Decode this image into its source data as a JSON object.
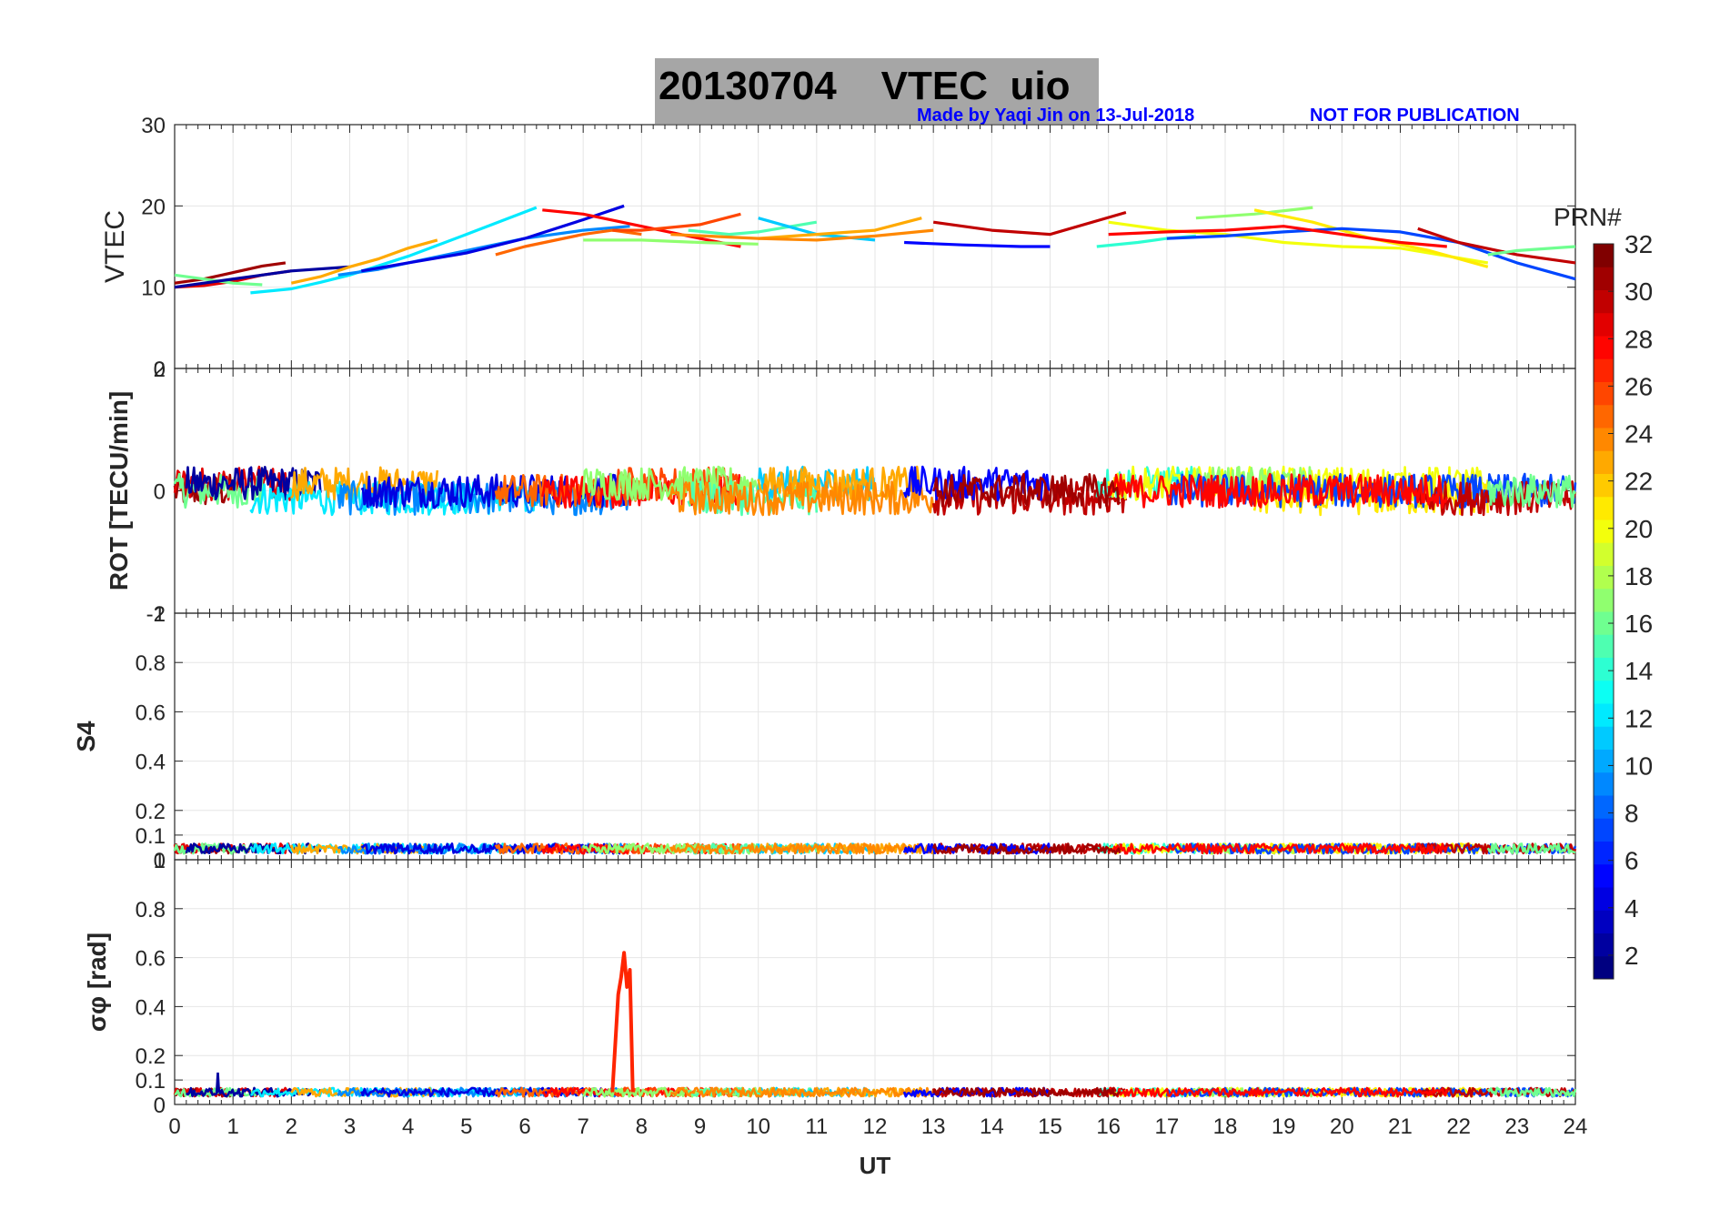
{
  "figure": {
    "title": "20130704    VTEC  uio",
    "credit": "Made by Yaqi Jin on 13-Jul-2018",
    "notice": "NOT FOR PUBLICATION"
  },
  "colorbar": {
    "label": "PRN#",
    "ticks": [
      "2",
      "4",
      "6",
      "8",
      "10",
      "12",
      "14",
      "16",
      "18",
      "20",
      "22",
      "24",
      "26",
      "28",
      "30",
      "32"
    ],
    "range": [
      1,
      32
    ]
  },
  "chart_data": [
    {
      "type": "line",
      "panel": "vtec",
      "ylabel": "VTEC",
      "xlim": [
        0,
        24
      ],
      "ylim": [
        0,
        30
      ],
      "yticks": [
        "0",
        "10",
        "20",
        "30"
      ],
      "series": [
        {
          "prn": 31,
          "x": [
            0.0,
            0.5,
            1.0,
            1.5,
            1.9
          ],
          "y": [
            10.5,
            11.0,
            11.8,
            12.6,
            13.0
          ]
        },
        {
          "prn": 29,
          "x": [
            0.0,
            0.5,
            1.0,
            1.5,
            2.0
          ],
          "y": [
            10.0,
            10.2,
            10.7,
            11.5,
            12.0
          ]
        },
        {
          "prn": 16,
          "x": [
            0.0,
            0.5,
            1.0,
            1.5
          ],
          "y": [
            11.5,
            11.0,
            10.5,
            10.3
          ]
        },
        {
          "prn": 2,
          "x": [
            0.0,
            0.5,
            1.0,
            1.5,
            2.0,
            3.0
          ],
          "y": [
            10.0,
            10.5,
            11.0,
            11.5,
            12.0,
            12.5
          ]
        },
        {
          "prn": 12,
          "x": [
            1.3,
            2.0,
            2.5,
            3.0,
            4.0,
            5.0,
            6.2
          ],
          "y": [
            9.3,
            9.8,
            10.6,
            11.5,
            13.8,
            16.5,
            19.8
          ]
        },
        {
          "prn": 23,
          "x": [
            2.0,
            2.5,
            3.0,
            3.5,
            4.0,
            4.5
          ],
          "y": [
            10.5,
            11.3,
            12.5,
            13.5,
            14.8,
            15.8
          ]
        },
        {
          "prn": 9,
          "x": [
            2.8,
            3.5,
            4.0,
            5.0,
            6.0,
            7.0,
            7.8
          ],
          "y": [
            11.5,
            12.2,
            13.0,
            14.5,
            16.0,
            17.0,
            17.5
          ]
        },
        {
          "prn": 4,
          "x": [
            3.2,
            4.0,
            5.0,
            6.0,
            7.0,
            7.7
          ],
          "y": [
            12.0,
            13.0,
            14.2,
            16.0,
            18.3,
            20.0
          ]
        },
        {
          "prn": 25,
          "x": [
            5.5,
            6.0,
            7.0,
            7.5,
            8.0
          ],
          "y": [
            14.0,
            15.0,
            16.5,
            17.0,
            16.5
          ]
        },
        {
          "prn": 28,
          "x": [
            6.3,
            7.0,
            8.0,
            9.0,
            9.7
          ],
          "y": [
            19.5,
            19.0,
            17.5,
            16.0,
            15.0
          ]
        },
        {
          "prn": 26,
          "x": [
            7.5,
            8.0,
            9.0,
            9.7
          ],
          "y": [
            17.0,
            17.0,
            17.7,
            19.0
          ]
        },
        {
          "prn": 17,
          "x": [
            7.0,
            8.0,
            9.0,
            10.0
          ],
          "y": [
            15.8,
            15.8,
            15.5,
            15.3
          ]
        },
        {
          "prn": 15,
          "x": [
            8.8,
            9.5,
            10.0,
            11.0
          ],
          "y": [
            17.0,
            16.5,
            16.8,
            18.0
          ]
        },
        {
          "prn": 11,
          "x": [
            10.0,
            10.5,
            11.0,
            12.0
          ],
          "y": [
            18.5,
            17.5,
            16.5,
            15.8
          ]
        },
        {
          "prn": 23,
          "x": [
            10.0,
            11.0,
            12.0,
            12.8
          ],
          "y": [
            16.0,
            16.5,
            17.0,
            18.5
          ]
        },
        {
          "prn": 24,
          "x": [
            8.5,
            10.0,
            11.0,
            12.0,
            13.0
          ],
          "y": [
            16.5,
            16.0,
            15.8,
            16.3,
            17.0
          ]
        },
        {
          "prn": 30,
          "x": [
            13.0,
            14.0,
            15.0,
            16.3
          ],
          "y": [
            18.0,
            17.0,
            16.5,
            19.2
          ]
        },
        {
          "prn": 5,
          "x": [
            12.5,
            13.5,
            14.5,
            15.0
          ],
          "y": [
            15.5,
            15.2,
            15.0,
            15.0
          ]
        },
        {
          "prn": 14,
          "x": [
            15.8,
            16.5,
            17.0,
            17.5
          ],
          "y": [
            15.0,
            15.5,
            16.0,
            16.3
          ]
        },
        {
          "prn": 20,
          "x": [
            16.0,
            17.0,
            18.0,
            19.0,
            20.0,
            21.0,
            22.5
          ],
          "y": [
            18.0,
            17.0,
            16.5,
            15.5,
            15.0,
            14.8,
            13.0
          ]
        },
        {
          "prn": 17,
          "x": [
            17.5,
            18.5,
            19.5
          ],
          "y": [
            18.5,
            19.0,
            19.8
          ]
        },
        {
          "prn": 21,
          "x": [
            18.5,
            19.5,
            20.5,
            21.5,
            22.5
          ],
          "y": [
            19.5,
            18.0,
            16.0,
            14.5,
            12.5
          ]
        },
        {
          "prn": 7,
          "x": [
            17.0,
            18.0,
            19.0,
            20.0,
            21.0,
            22.0,
            23.0,
            24.0
          ],
          "y": [
            16.0,
            16.3,
            16.8,
            17.2,
            16.8,
            15.5,
            13.0,
            11.0
          ]
        },
        {
          "prn": 30,
          "x": [
            21.3,
            22.0,
            23.0,
            24.0
          ],
          "y": [
            17.2,
            15.5,
            14.0,
            13.0
          ]
        },
        {
          "prn": 16,
          "x": [
            22.5,
            23.0,
            24.0
          ],
          "y": [
            14.0,
            14.5,
            15.0
          ]
        },
        {
          "prn": 28,
          "x": [
            16.0,
            17.0,
            18.0,
            19.0,
            20.0,
            21.0,
            21.8
          ],
          "y": [
            16.5,
            16.8,
            17.0,
            17.5,
            16.5,
            15.5,
            15.0
          ]
        }
      ]
    },
    {
      "type": "line",
      "panel": "rot",
      "ylabel": "ROT [TECU/min]",
      "xlim": [
        0,
        24
      ],
      "ylim": [
        -2,
        2
      ],
      "yticks": [
        "-2",
        "0",
        "2"
      ],
      "note": "Dense noisy ROT traces for all PRNs fluctuating within roughly -0.5 to +0.4 TECU/min around zero across 0-24 UT"
    },
    {
      "type": "line",
      "panel": "s4",
      "ylabel": "S4",
      "xlim": [
        0,
        24
      ],
      "ylim": [
        0,
        1
      ],
      "yticks": [
        "0",
        "0.1",
        "0.2",
        "0.4",
        "0.6",
        "0.8",
        "1"
      ],
      "note": "S4 stays low (about 0.03-0.08) for all PRNs across 0-24 UT"
    },
    {
      "type": "line",
      "panel": "sigma-phi",
      "ylabel": "σφ [rad]",
      "xlim": [
        0,
        24
      ],
      "ylim": [
        0,
        1
      ],
      "yticks": [
        "0",
        "0.1",
        "0.2",
        "0.4",
        "0.6",
        "0.8",
        "1"
      ],
      "xlabel": "UT",
      "xticks": [
        "0",
        "1",
        "2",
        "3",
        "4",
        "5",
        "6",
        "7",
        "8",
        "9",
        "10",
        "11",
        "12",
        "13",
        "14",
        "15",
        "16",
        "17",
        "18",
        "19",
        "20",
        "21",
        "22",
        "23",
        "24"
      ],
      "spike": {
        "prn": 27,
        "x": [
          7.5,
          7.6,
          7.65,
          7.7,
          7.75,
          7.8,
          7.85
        ],
        "y": [
          0.05,
          0.45,
          0.52,
          0.62,
          0.48,
          0.55,
          0.05
        ]
      },
      "note": "Phase scintillation mostly about 0.03-0.08 rad, with one spike to ~0.63 rad near 7.7 UT"
    }
  ]
}
